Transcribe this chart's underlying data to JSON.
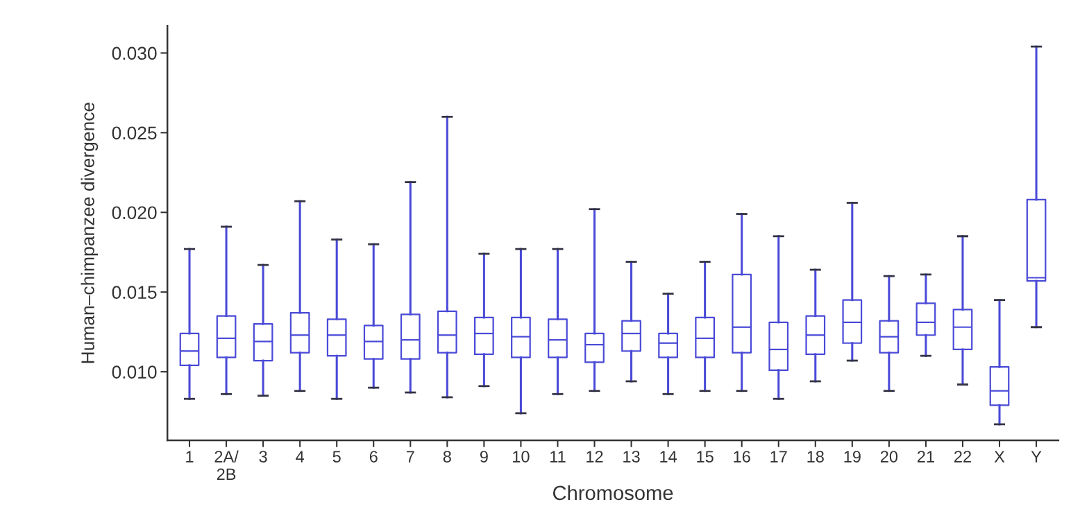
{
  "chart_data": {
    "type": "box",
    "xlabel": "Chromosome",
    "ylabel": "Human–chimpanzee divergence",
    "categories": [
      "1",
      "2A/\n2B",
      "3",
      "4",
      "5",
      "6",
      "7",
      "8",
      "9",
      "10",
      "11",
      "12",
      "13",
      "14",
      "15",
      "16",
      "17",
      "18",
      "19",
      "20",
      "21",
      "22",
      "X",
      "Y"
    ],
    "color": "#4a4ad8",
    "ylim": [
      0.0057,
      0.0317
    ],
    "yticks": [
      {
        "value": 0.01,
        "label": "0.010"
      },
      {
        "value": 0.015,
        "label": "0.015"
      },
      {
        "value": 0.02,
        "label": "0.020"
      },
      {
        "value": 0.025,
        "label": "0.025"
      },
      {
        "value": 0.03,
        "label": "0.030"
      }
    ],
    "grid": false,
    "boxes": [
      {
        "low": 0.0083,
        "q1": 0.0104,
        "median": 0.0113,
        "q3": 0.0124,
        "high": 0.0177
      },
      {
        "low": 0.0086,
        "q1": 0.0109,
        "median": 0.0121,
        "q3": 0.0135,
        "high": 0.0191
      },
      {
        "low": 0.0085,
        "q1": 0.0107,
        "median": 0.0119,
        "q3": 0.013,
        "high": 0.0167
      },
      {
        "low": 0.0088,
        "q1": 0.0112,
        "median": 0.0123,
        "q3": 0.0137,
        "high": 0.0207
      },
      {
        "low": 0.0083,
        "q1": 0.011,
        "median": 0.0123,
        "q3": 0.0133,
        "high": 0.0183
      },
      {
        "low": 0.009,
        "q1": 0.0108,
        "median": 0.0119,
        "q3": 0.0129,
        "high": 0.018
      },
      {
        "low": 0.0087,
        "q1": 0.0108,
        "median": 0.012,
        "q3": 0.0136,
        "high": 0.0219
      },
      {
        "low": 0.0084,
        "q1": 0.0112,
        "median": 0.0123,
        "q3": 0.0138,
        "high": 0.026
      },
      {
        "low": 0.0091,
        "q1": 0.0111,
        "median": 0.0124,
        "q3": 0.0134,
        "high": 0.0174
      },
      {
        "low": 0.0074,
        "q1": 0.0109,
        "median": 0.0122,
        "q3": 0.0134,
        "high": 0.0177
      },
      {
        "low": 0.0086,
        "q1": 0.0109,
        "median": 0.012,
        "q3": 0.0133,
        "high": 0.0177
      },
      {
        "low": 0.0088,
        "q1": 0.0106,
        "median": 0.0117,
        "q3": 0.0124,
        "high": 0.0202
      },
      {
        "low": 0.0094,
        "q1": 0.0113,
        "median": 0.0124,
        "q3": 0.0132,
        "high": 0.0169
      },
      {
        "low": 0.0086,
        "q1": 0.0109,
        "median": 0.0118,
        "q3": 0.0124,
        "high": 0.0149
      },
      {
        "low": 0.0088,
        "q1": 0.0109,
        "median": 0.0121,
        "q3": 0.0134,
        "high": 0.0169
      },
      {
        "low": 0.0088,
        "q1": 0.0112,
        "median": 0.0128,
        "q3": 0.0161,
        "high": 0.0199
      },
      {
        "low": 0.0083,
        "q1": 0.0101,
        "median": 0.0114,
        "q3": 0.0131,
        "high": 0.0185
      },
      {
        "low": 0.0094,
        "q1": 0.0111,
        "median": 0.0123,
        "q3": 0.0135,
        "high": 0.0164
      },
      {
        "low": 0.0107,
        "q1": 0.0118,
        "median": 0.0131,
        "q3": 0.0145,
        "high": 0.0206
      },
      {
        "low": 0.0088,
        "q1": 0.0112,
        "median": 0.0122,
        "q3": 0.0132,
        "high": 0.016
      },
      {
        "low": 0.011,
        "q1": 0.0123,
        "median": 0.0131,
        "q3": 0.0143,
        "high": 0.0161
      },
      {
        "low": 0.0092,
        "q1": 0.0114,
        "median": 0.0128,
        "q3": 0.0139,
        "high": 0.0185
      },
      {
        "low": 0.0067,
        "q1": 0.0079,
        "median": 0.0088,
        "q3": 0.0103,
        "high": 0.0145
      },
      {
        "low": 0.0128,
        "q1": 0.0157,
        "median": 0.0159,
        "q3": 0.0208,
        "high": 0.0304
      }
    ]
  }
}
